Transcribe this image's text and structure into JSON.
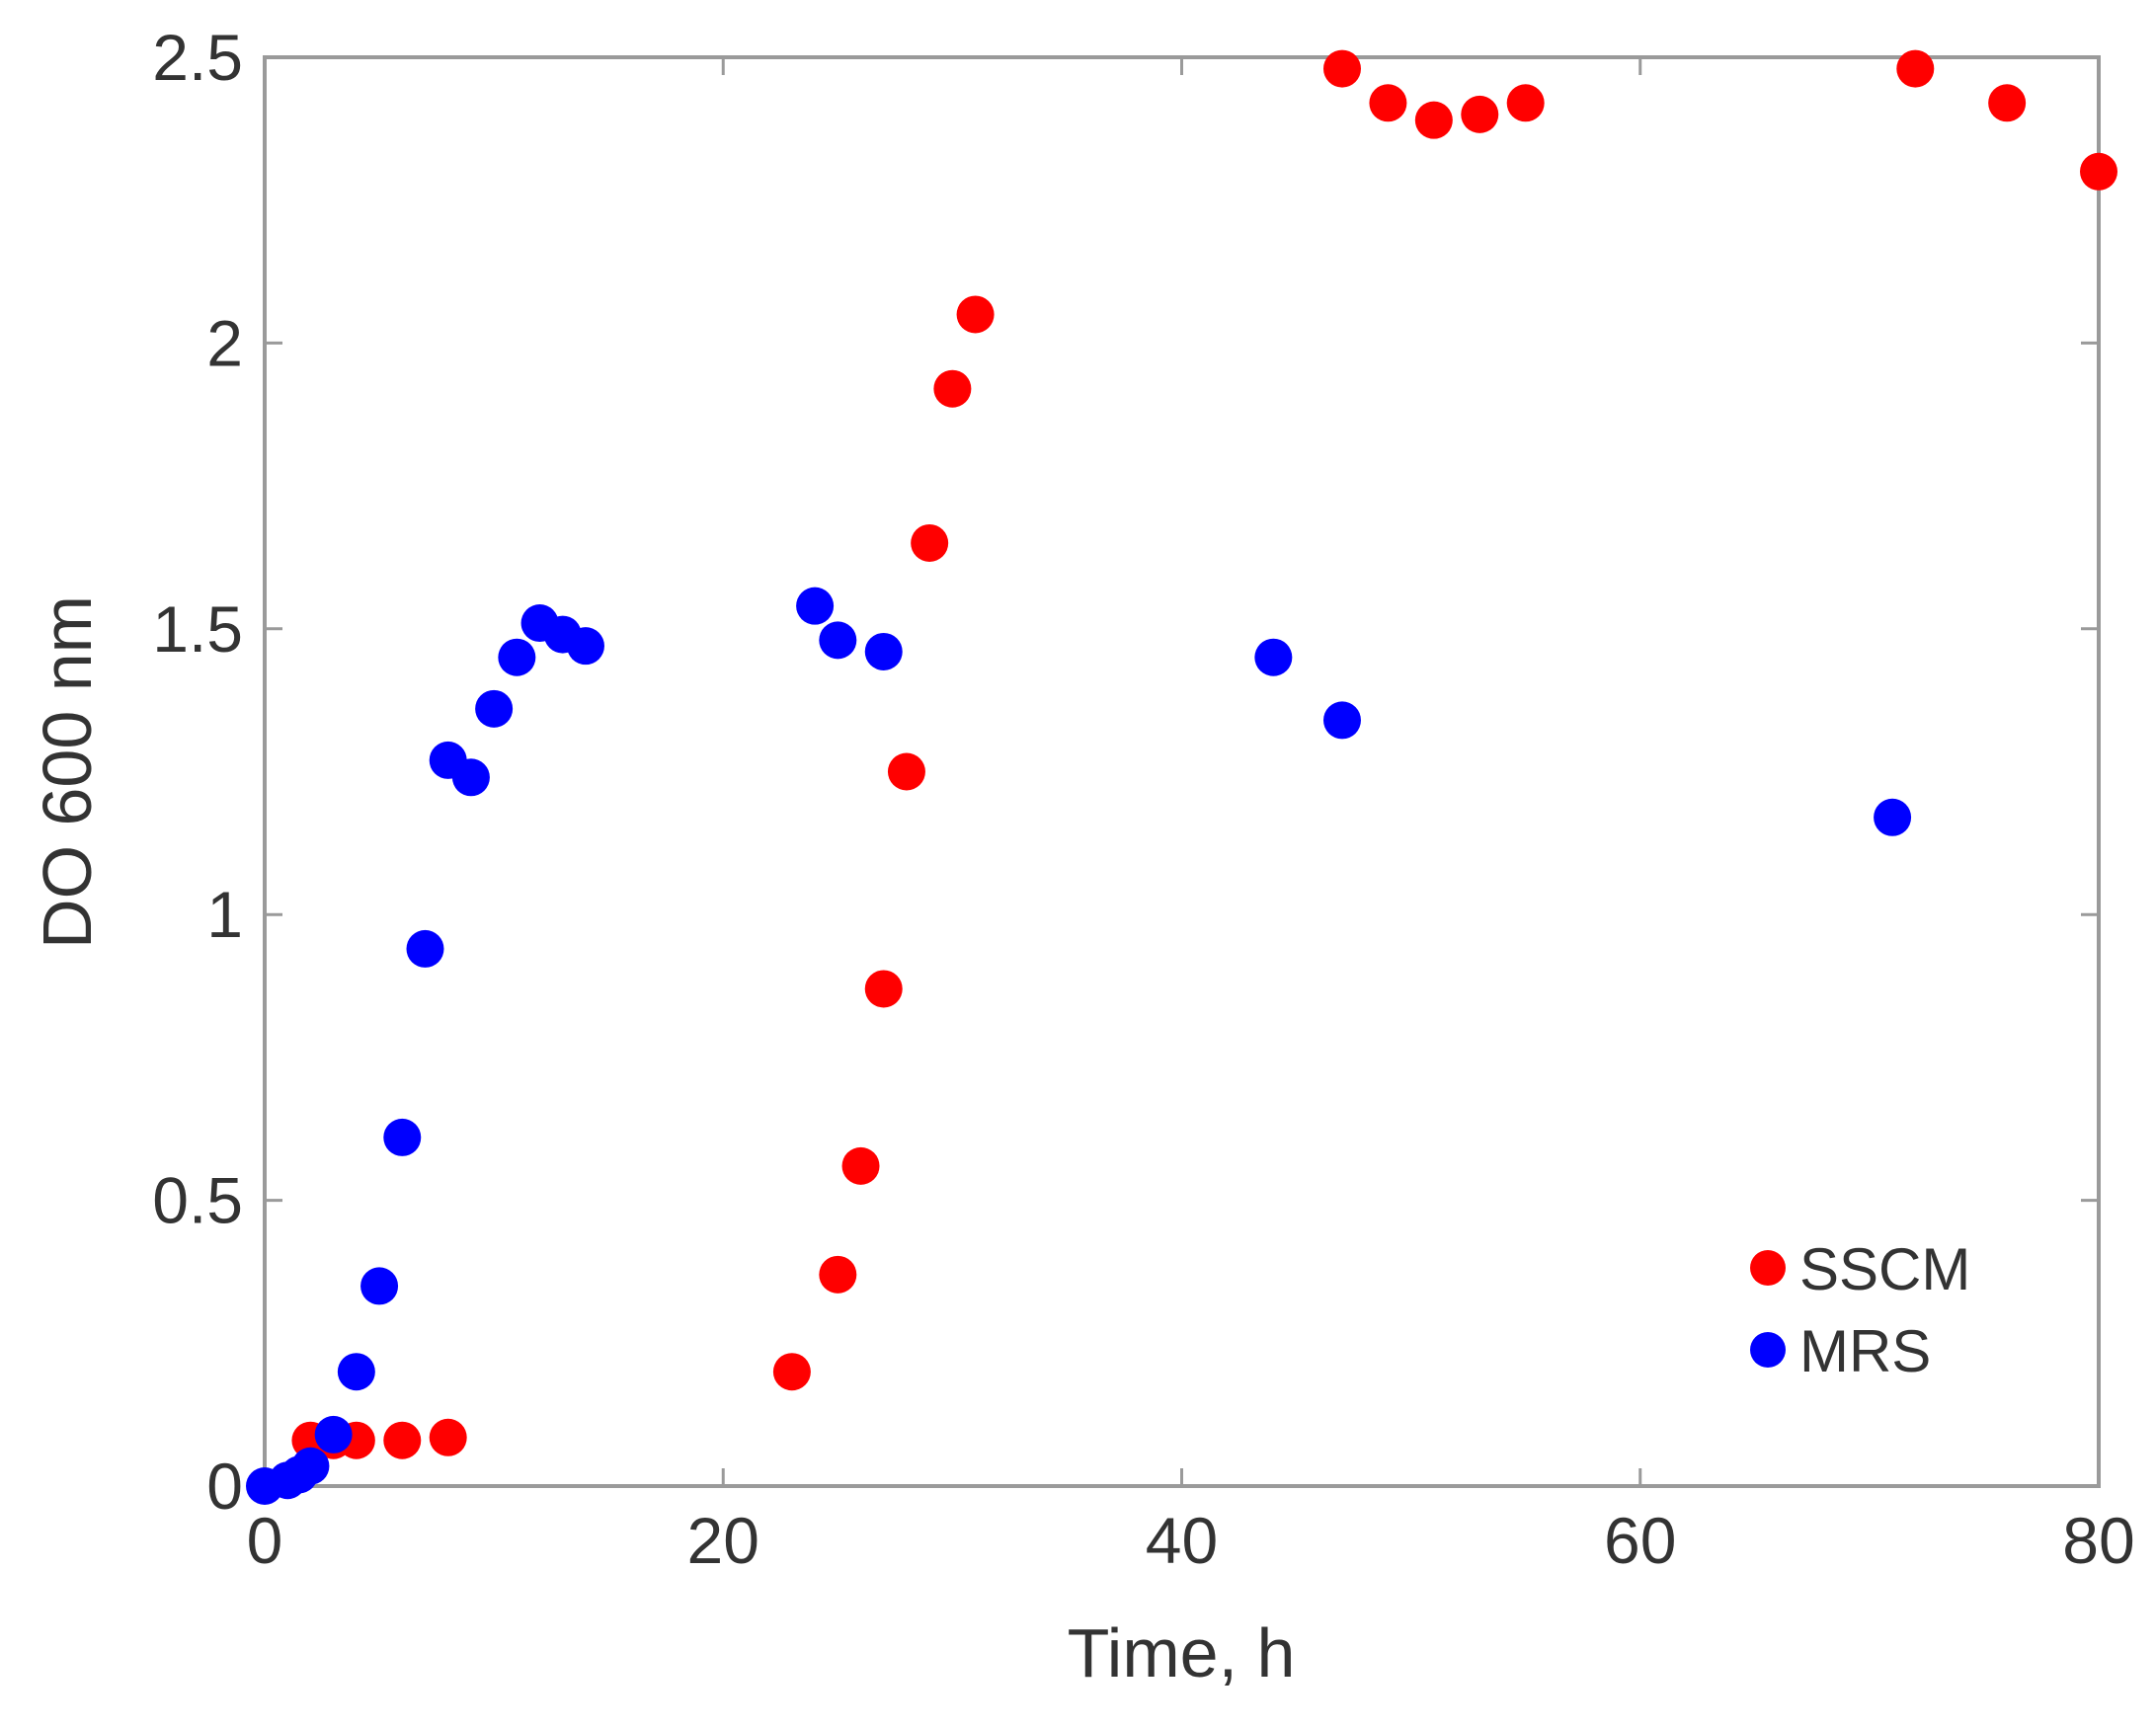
{
  "chart_data": {
    "type": "scatter",
    "title": "",
    "xlabel": "Time, h",
    "ylabel": "DO 600 nm",
    "xlim": [
      0,
      80
    ],
    "ylim": [
      0,
      2.5
    ],
    "x_ticks": [
      "0",
      "20",
      "40",
      "60",
      "80"
    ],
    "y_ticks": [
      "0",
      "0.5",
      "1",
      "1.5",
      "2",
      "2.5"
    ],
    "grid": false,
    "legend_position": "bottom-right",
    "series": [
      {
        "name": "SSCM",
        "color": "#ff0000",
        "points": [
          [
            2,
            0.08
          ],
          [
            3,
            0.08
          ],
          [
            4,
            0.08
          ],
          [
            6,
            0.08
          ],
          [
            8,
            0.085
          ],
          [
            23,
            0.2
          ],
          [
            25,
            0.37
          ],
          [
            26,
            0.56
          ],
          [
            27,
            0.87
          ],
          [
            28,
            1.25
          ],
          [
            29,
            1.65
          ],
          [
            30,
            1.92
          ],
          [
            31,
            2.05
          ],
          [
            47,
            2.48
          ],
          [
            49,
            2.42
          ],
          [
            51,
            2.39
          ],
          [
            53,
            2.4
          ],
          [
            55,
            2.42
          ],
          [
            72,
            2.48
          ],
          [
            76,
            2.42
          ],
          [
            80,
            2.3
          ]
        ]
      },
      {
        "name": "MRS",
        "color": "#0000ff",
        "points": [
          [
            0,
            0.0
          ],
          [
            1,
            0.01
          ],
          [
            1.5,
            0.02
          ],
          [
            2,
            0.035
          ],
          [
            3,
            0.09
          ],
          [
            4,
            0.2
          ],
          [
            5,
            0.35
          ],
          [
            6,
            0.61
          ],
          [
            7,
            0.94
          ],
          [
            8,
            1.27
          ],
          [
            9,
            1.24
          ],
          [
            10,
            1.36
          ],
          [
            11,
            1.45
          ],
          [
            12,
            1.51
          ],
          [
            13,
            1.49
          ],
          [
            14,
            1.47
          ],
          [
            24,
            1.54
          ],
          [
            25,
            1.48
          ],
          [
            27,
            1.46
          ],
          [
            44,
            1.45
          ],
          [
            47,
            1.34
          ],
          [
            71,
            1.17
          ]
        ]
      }
    ]
  }
}
